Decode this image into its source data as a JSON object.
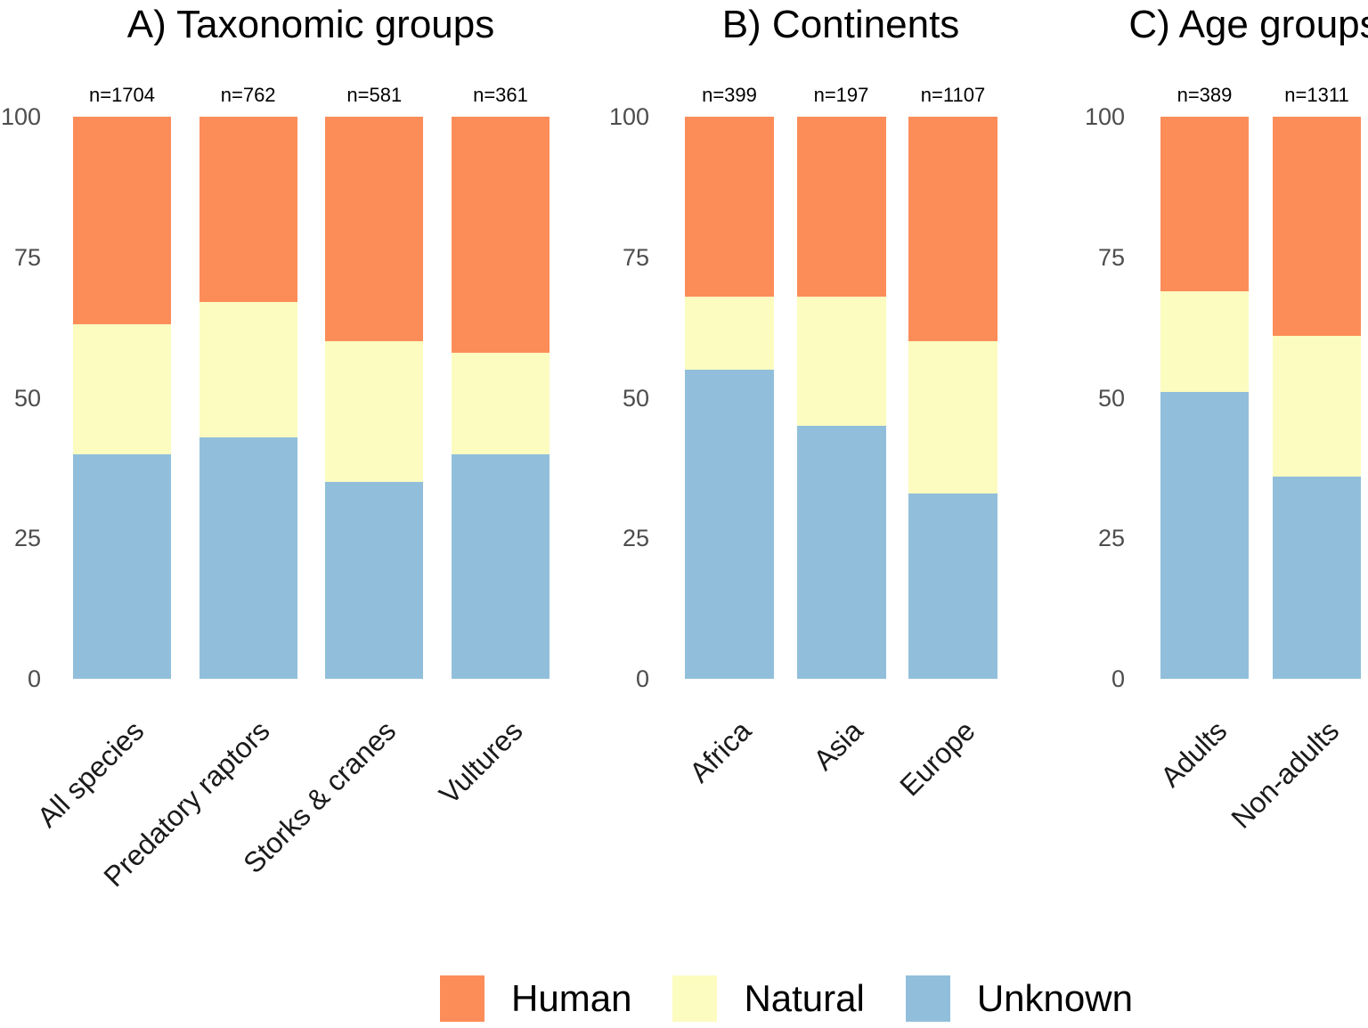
{
  "figure": {
    "background": "#ffffff",
    "legend": {
      "items": [
        {
          "label": "Human",
          "color": "#FC8D59"
        },
        {
          "label": "Natural",
          "color": "#FCFCC0"
        },
        {
          "label": "Unknown",
          "color": "#91BFDB"
        }
      ]
    }
  },
  "chart_data": [
    {
      "type": "bar",
      "stacked": true,
      "units": "percent",
      "title": "A) Taxonomic groups",
      "categories": [
        "All species",
        "Predatory raptors",
        "Storks & cranes",
        "Vultures"
      ],
      "sample_sizes": [
        "n=1704",
        "n=762",
        "n=581",
        "n=361"
      ],
      "series": [
        {
          "name": "Unknown",
          "color": "#91BFDB",
          "values": [
            40,
            43,
            35,
            40
          ]
        },
        {
          "name": "Natural",
          "color": "#FCFCC0",
          "values": [
            23,
            24,
            25,
            18
          ]
        },
        {
          "name": "Human",
          "color": "#FC8D59",
          "values": [
            37,
            33,
            40,
            42
          ]
        }
      ],
      "xlabel": "",
      "ylabel": "",
      "ylim": [
        0,
        100
      ],
      "yticks": [
        "0",
        "25",
        "50",
        "75",
        "100"
      ],
      "grid": false,
      "legend_position": "bottom"
    },
    {
      "type": "bar",
      "stacked": true,
      "units": "percent",
      "title": "B) Continents",
      "categories": [
        "Africa",
        "Asia",
        "Europe"
      ],
      "sample_sizes": [
        "n=399",
        "n=197",
        "n=1107"
      ],
      "series": [
        {
          "name": "Unknown",
          "color": "#91BFDB",
          "values": [
            55,
            45,
            33
          ]
        },
        {
          "name": "Natural",
          "color": "#FCFCC0",
          "values": [
            13,
            23,
            27
          ]
        },
        {
          "name": "Human",
          "color": "#FC8D59",
          "values": [
            32,
            32,
            40
          ]
        }
      ],
      "xlabel": "",
      "ylabel": "",
      "ylim": [
        0,
        100
      ],
      "yticks": [
        "0",
        "25",
        "50",
        "75",
        "100"
      ],
      "grid": false,
      "legend_position": "bottom"
    },
    {
      "type": "bar",
      "stacked": true,
      "units": "percent",
      "title": "C) Age groups",
      "categories": [
        "Adults",
        "Non-adults"
      ],
      "sample_sizes": [
        "n=389",
        "n=1311"
      ],
      "series": [
        {
          "name": "Unknown",
          "color": "#91BFDB",
          "values": [
            51,
            36
          ]
        },
        {
          "name": "Natural",
          "color": "#FCFCC0",
          "values": [
            18,
            25
          ]
        },
        {
          "name": "Human",
          "color": "#FC8D59",
          "values": [
            31,
            39
          ]
        }
      ],
      "xlabel": "",
      "ylabel": "",
      "ylim": [
        0,
        100
      ],
      "yticks": [
        "0",
        "25",
        "50",
        "75",
        "100"
      ],
      "grid": false,
      "legend_position": "bottom"
    }
  ]
}
